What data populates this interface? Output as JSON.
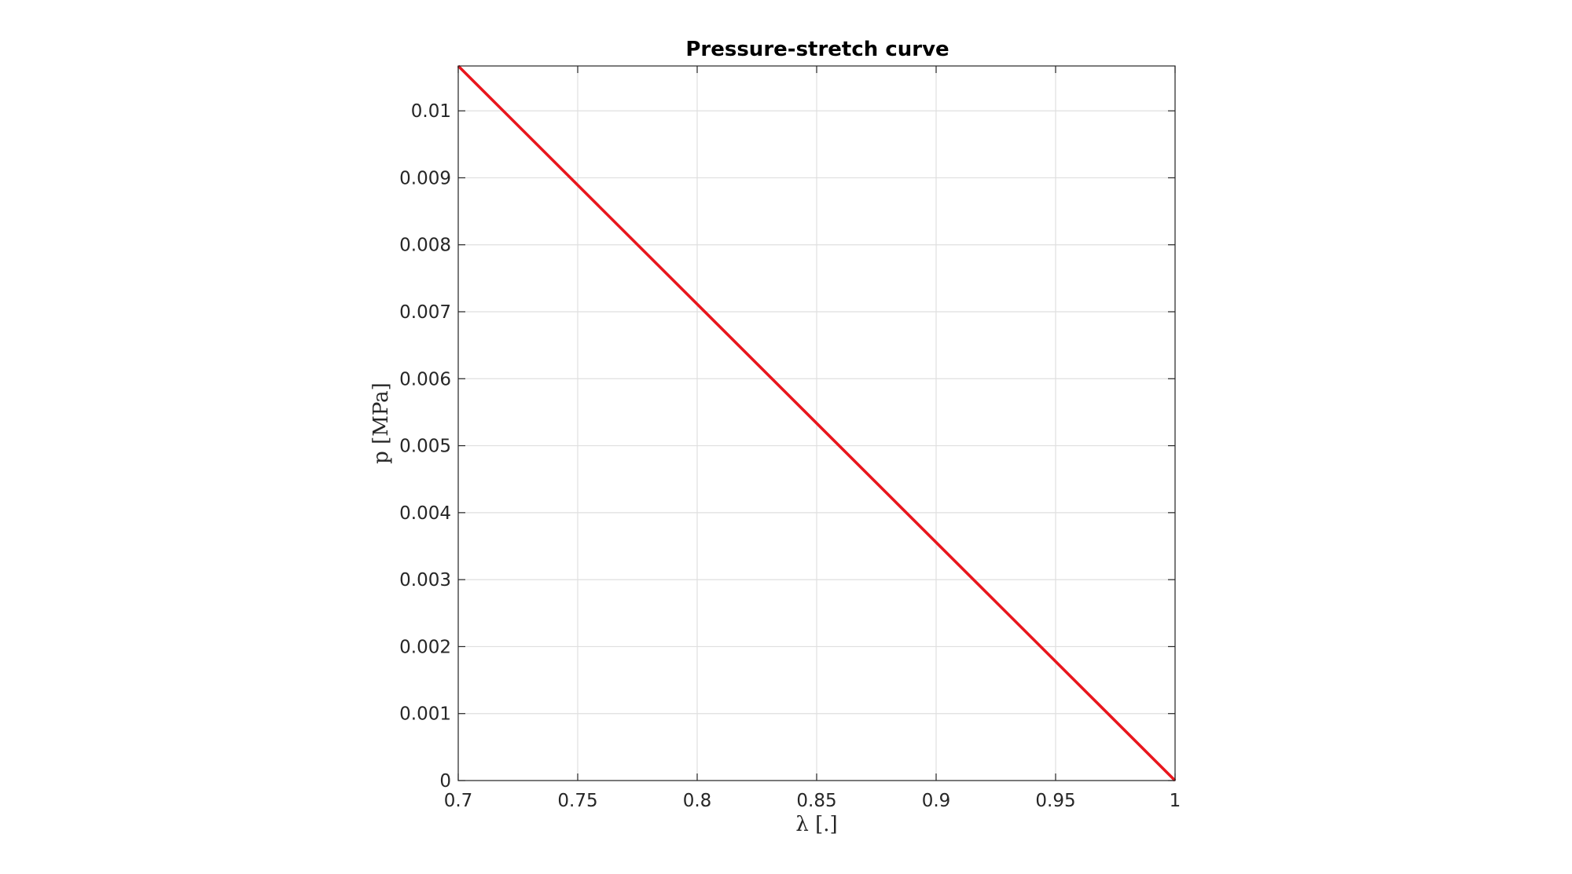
{
  "chart_data": {
    "type": "line",
    "title": "Pressure-stretch curve",
    "xlabel": "λ [.]",
    "ylabel": "p [MPa]",
    "xlim": [
      0.7,
      1
    ],
    "ylim": [
      0,
      0.01067
    ],
    "xticks": [
      "0.7",
      "0.75",
      "0.8",
      "0.85",
      "0.9",
      "0.95",
      "1"
    ],
    "yticks": [
      "0",
      "0.001",
      "0.002",
      "0.003",
      "0.004",
      "0.005",
      "0.006",
      "0.007",
      "0.008",
      "0.009",
      "0.01"
    ],
    "grid": true,
    "series": [
      {
        "color": "#e8161d",
        "x": [
          0.7,
          1.0
        ],
        "y": [
          0.01067,
          0.0
        ]
      }
    ]
  }
}
